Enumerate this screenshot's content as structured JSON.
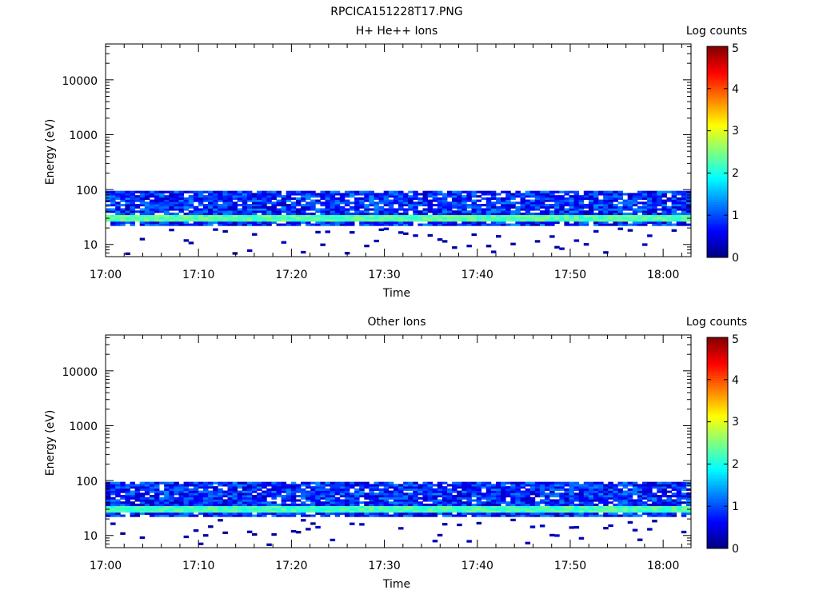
{
  "figure_title": "RPCICA151228T17.PNG",
  "chart_data": [
    {
      "type": "heatmap",
      "title": "H+ He++ Ions",
      "xlabel": "Time",
      "ylabel": "Energy (eV)",
      "y_scale": "log",
      "xlim": [
        "17:00",
        "18:03"
      ],
      "ylim": [
        6,
        45000
      ],
      "x_ticks": [
        "17:00",
        "17:10",
        "17:20",
        "17:30",
        "17:40",
        "17:50",
        "18:00"
      ],
      "y_ticks": [
        "10",
        "100",
        "1000",
        "10000"
      ],
      "colorbar": {
        "label": "Log counts",
        "range": [
          0,
          5
        ],
        "ticks": [
          "0",
          "1",
          "2",
          "3",
          "4",
          "5"
        ],
        "colormap": "jet"
      },
      "energy_band_eV": [
        22,
        95
      ],
      "peak_band_eV": [
        26,
        35
      ],
      "peak_log_counts": 2.4,
      "background_log_counts": 0.8
    },
    {
      "type": "heatmap",
      "title": "Other Ions",
      "xlabel": "Time",
      "ylabel": "Energy (eV)",
      "y_scale": "log",
      "xlim": [
        "17:00",
        "18:03"
      ],
      "ylim": [
        6,
        45000
      ],
      "x_ticks": [
        "17:00",
        "17:10",
        "17:20",
        "17:30",
        "17:40",
        "17:50",
        "18:00"
      ],
      "y_ticks": [
        "10",
        "100",
        "1000",
        "10000"
      ],
      "colorbar": {
        "label": "Log counts",
        "range": [
          0,
          5
        ],
        "ticks": [
          "0",
          "1",
          "2",
          "3",
          "4",
          "5"
        ],
        "colormap": "jet"
      },
      "energy_band_eV": [
        22,
        95
      ],
      "peak_band_eV": [
        26,
        35
      ],
      "peak_log_counts": 2.3,
      "background_log_counts": 0.8
    }
  ]
}
